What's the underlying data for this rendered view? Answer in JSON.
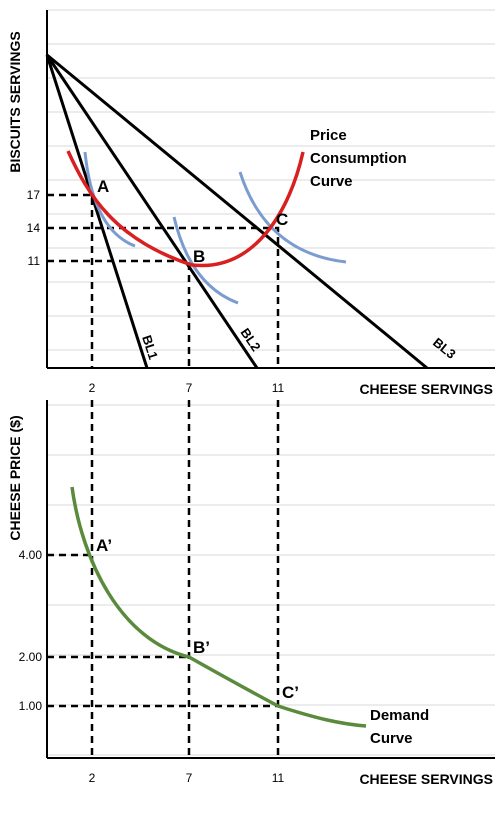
{
  "chart_data": [
    {
      "type": "line",
      "xlabel": "CHEESE SERVINGS",
      "ylabel": "BISCUITS SERVINGS",
      "x_ticks": [
        "2",
        "7",
        "11"
      ],
      "y_ticks": [
        "17",
        "14",
        "11"
      ],
      "grid": true,
      "budget_lines": [
        {
          "name": "BL1",
          "x_intercept": 4.8
        },
        {
          "name": "BL2",
          "x_intercept": 9.5
        },
        {
          "name": "BL3",
          "x_intercept": 17.5
        }
      ],
      "points": [
        {
          "label": "A",
          "x": 2,
          "y": 17
        },
        {
          "label": "B",
          "x": 7,
          "y": 11
        },
        {
          "label": "C",
          "x": 11,
          "y": 14
        }
      ],
      "annotation": [
        "Price",
        "Consumption",
        "Curve"
      ],
      "colors": {
        "price_consumption_curve": "#d92020",
        "indifference_curves": "#7b9ccf",
        "budget_lines": "#000000"
      }
    },
    {
      "type": "line",
      "xlabel": "CHEESE SERVINGS",
      "ylabel": "CHEESE PRICE ($)",
      "x_ticks": [
        "2",
        "7",
        "11"
      ],
      "y_ticks": [
        "4.00",
        "2.00",
        "1.00"
      ],
      "grid": true,
      "points": [
        {
          "label": "A’",
          "x": 2,
          "y": 4.0
        },
        {
          "label": "B’",
          "x": 7,
          "y": 2.0
        },
        {
          "label": "C’",
          "x": 11,
          "y": 1.0
        }
      ],
      "annotation": [
        "Demand",
        "Curve"
      ],
      "colors": {
        "demand_curve": "#5a8a3c"
      }
    }
  ]
}
